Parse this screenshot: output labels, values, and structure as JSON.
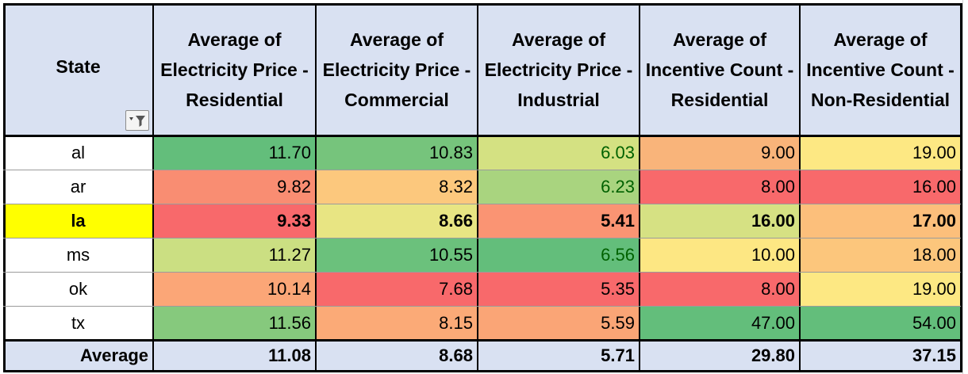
{
  "headers": [
    "State",
    "Average of\nElectricity Price -\nResidential",
    "Average of\nElectricity Price -\nCommercial",
    "Average of\nElectricity Price -\nIndustrial",
    "Average of\nIncentive Count -\nResidential",
    "Average of\nIncentive Count -\nNon-Residential"
  ],
  "rows": [
    {
      "state": "al",
      "values": [
        "11.70",
        "10.83",
        "6.03",
        "9.00",
        "19.00"
      ],
      "fills": [
        "#63be7b",
        "#76c47c",
        "#d4e182",
        "#f9b47a",
        "#fde883"
      ],
      "text_colors": [
        "#000000",
        "#000000",
        "#006100",
        "#000000",
        "#000000"
      ],
      "state_fill": "#ffffff",
      "bold": false
    },
    {
      "state": "ar",
      "values": [
        "9.82",
        "8.32",
        "6.23",
        "8.00",
        "16.00"
      ],
      "fills": [
        "#f98d72",
        "#fcc87d",
        "#a9d47f",
        "#f8696b",
        "#f8696b"
      ],
      "text_colors": [
        "#000000",
        "#000000",
        "#006100",
        "#000000",
        "#000000"
      ],
      "state_fill": "#ffffff",
      "bold": false
    },
    {
      "state": "la",
      "values": [
        "9.33",
        "8.66",
        "5.41",
        "16.00",
        "17.00"
      ],
      "fills": [
        "#f8696b",
        "#e8e583",
        "#fa9473",
        "#d6e183",
        "#fcbf7b"
      ],
      "text_colors": [
        "#000000",
        "#000000",
        "#000000",
        "#000000",
        "#000000"
      ],
      "state_fill": "#ffff00",
      "bold": true
    },
    {
      "state": "ms",
      "values": [
        "11.27",
        "10.55",
        "6.56",
        "10.00",
        "18.00"
      ],
      "fills": [
        "#cbdf82",
        "#6bc17c",
        "#63be7b",
        "#fde783",
        "#fcc67c"
      ],
      "text_colors": [
        "#000000",
        "#000000",
        "#006100",
        "#000000",
        "#000000"
      ],
      "state_fill": "#ffffff",
      "bold": false
    },
    {
      "state": "ok",
      "values": [
        "10.14",
        "7.68",
        "5.35",
        "8.00",
        "19.00"
      ],
      "fills": [
        "#fba677",
        "#f8696b",
        "#f8696b",
        "#f8696b",
        "#fde883"
      ],
      "text_colors": [
        "#000000",
        "#000000",
        "#000000",
        "#000000",
        "#000000"
      ],
      "state_fill": "#ffffff",
      "bold": false
    },
    {
      "state": "tx",
      "values": [
        "11.56",
        "8.15",
        "5.59",
        "47.00",
        "54.00"
      ],
      "fills": [
        "#86c97d",
        "#fbaa77",
        "#faa576",
        "#63be7b",
        "#63be7b"
      ],
      "text_colors": [
        "#000000",
        "#000000",
        "#000000",
        "#000000",
        "#000000"
      ],
      "state_fill": "#ffffff",
      "bold": false
    }
  ],
  "footer": {
    "label": "Average",
    "values": [
      "11.08",
      "8.68",
      "5.71",
      "29.80",
      "37.15"
    ]
  },
  "colors": {
    "header_fill": "#d9e1f2",
    "highlight": "#ffff00"
  },
  "icons": {
    "state_filter": "filter-dropdown-icon"
  }
}
